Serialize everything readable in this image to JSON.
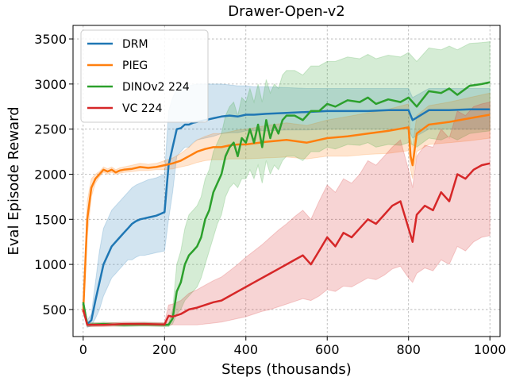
{
  "chart_data": {
    "type": "line",
    "title": "Drawer-Open-v2",
    "xlabel": "Steps (thousands)",
    "ylabel": "Eval Episode Reward",
    "xlim": [
      -25,
      1025
    ],
    "ylim": [
      200,
      3650
    ],
    "xticks": [
      0,
      200,
      400,
      600,
      800,
      1000
    ],
    "yticks": [
      500,
      1000,
      1500,
      2000,
      2500,
      3000,
      3500
    ],
    "grid": true,
    "legend_position": "top-left",
    "series": [
      {
        "name": "DRM",
        "color": "#1f77b4",
        "x": [
          0,
          10,
          20,
          30,
          40,
          50,
          60,
          70,
          80,
          90,
          100,
          110,
          120,
          130,
          140,
          150,
          160,
          170,
          180,
          190,
          200,
          210,
          220,
          230,
          240,
          250,
          260,
          270,
          280,
          300,
          320,
          340,
          360,
          380,
          400,
          420,
          450,
          500,
          550,
          600,
          650,
          700,
          750,
          800,
          810,
          850,
          900,
          950,
          1000
        ],
        "values": [
          560,
          340,
          380,
          600,
          800,
          1000,
          1100,
          1200,
          1250,
          1300,
          1350,
          1400,
          1450,
          1480,
          1500,
          1510,
          1520,
          1530,
          1540,
          1560,
          1580,
          2100,
          2300,
          2500,
          2510,
          2550,
          2550,
          2570,
          2580,
          2600,
          2620,
          2640,
          2650,
          2640,
          2660,
          2660,
          2670,
          2680,
          2690,
          2700,
          2700,
          2700,
          2710,
          2710,
          2600,
          2710,
          2710,
          2720,
          2720
        ],
        "lower": [
          500,
          300,
          320,
          400,
          500,
          650,
          750,
          850,
          900,
          950,
          1000,
          1050,
          1050,
          1080,
          1100,
          1100,
          1110,
          1120,
          1130,
          1140,
          1150,
          1500,
          1800,
          2200,
          2250,
          2300,
          2300,
          2350,
          2380,
          2400,
          2420,
          2450,
          2460,
          2460,
          2480,
          2480,
          2480,
          2490,
          2490,
          2500,
          2500,
          2500,
          2500,
          2500,
          2400,
          2500,
          2500,
          2500,
          2500
        ],
        "upper": [
          620,
          380,
          450,
          800,
          1150,
          1400,
          1500,
          1600,
          1650,
          1700,
          1750,
          1800,
          1850,
          1880,
          1900,
          1920,
          1940,
          1950,
          1960,
          1980,
          2000,
          2700,
          2850,
          2950,
          2950,
          2980,
          2980,
          2990,
          3000,
          3000,
          3000,
          3000,
          2990,
          2980,
          2980,
          2970,
          2970,
          2960,
          2950,
          2950,
          2950,
          2950,
          2950,
          2950,
          2850,
          2950,
          2950,
          2950,
          2950
        ]
      },
      {
        "name": "PIEG",
        "color": "#ff7f0e",
        "x": [
          0,
          10,
          20,
          30,
          40,
          50,
          60,
          70,
          80,
          90,
          100,
          120,
          140,
          160,
          180,
          200,
          220,
          240,
          260,
          280,
          300,
          320,
          340,
          360,
          380,
          400,
          450,
          500,
          550,
          600,
          650,
          700,
          750,
          800,
          805,
          810,
          820,
          850,
          900,
          950,
          1000
        ],
        "values": [
          470,
          1500,
          1850,
          1950,
          2000,
          2050,
          2030,
          2050,
          2020,
          2040,
          2050,
          2060,
          2080,
          2070,
          2080,
          2100,
          2120,
          2150,
          2200,
          2250,
          2280,
          2300,
          2300,
          2320,
          2330,
          2330,
          2360,
          2380,
          2350,
          2400,
          2420,
          2450,
          2480,
          2520,
          2200,
          2100,
          2450,
          2550,
          2580,
          2620,
          2660
        ],
        "lower": [
          440,
          1300,
          1750,
          1900,
          1970,
          2020,
          2000,
          2020,
          2000,
          2010,
          2020,
          2030,
          2040,
          2040,
          2050,
          2050,
          2060,
          2080,
          2100,
          2130,
          2150,
          2160,
          2160,
          2170,
          2170,
          2170,
          2180,
          2190,
          2170,
          2200,
          2200,
          2220,
          2230,
          2260,
          2050,
          1950,
          2250,
          2330,
          2350,
          2370,
          2400
        ],
        "upper": [
          500,
          1700,
          1950,
          2000,
          2030,
          2080,
          2060,
          2080,
          2050,
          2070,
          2080,
          2100,
          2120,
          2110,
          2120,
          2150,
          2180,
          2230,
          2300,
          2380,
          2420,
          2450,
          2450,
          2470,
          2490,
          2500,
          2540,
          2570,
          2540,
          2600,
          2640,
          2680,
          2720,
          2780,
          2400,
          2300,
          2650,
          2760,
          2800,
          2850,
          2900
        ]
      },
      {
        "name": "DINOv2 224",
        "color": "#2ca02c",
        "x": [
          0,
          10,
          50,
          100,
          150,
          200,
          210,
          220,
          230,
          240,
          250,
          260,
          270,
          280,
          290,
          300,
          310,
          320,
          330,
          340,
          350,
          360,
          370,
          380,
          390,
          400,
          410,
          420,
          430,
          440,
          450,
          460,
          470,
          480,
          490,
          500,
          520,
          540,
          560,
          580,
          600,
          620,
          650,
          680,
          700,
          720,
          750,
          780,
          800,
          820,
          850,
          880,
          900,
          920,
          950,
          980,
          1000
        ],
        "values": [
          580,
          330,
          340,
          330,
          335,
          330,
          330,
          400,
          700,
          800,
          1000,
          1100,
          1150,
          1200,
          1300,
          1500,
          1600,
          1800,
          1900,
          2000,
          2200,
          2300,
          2350,
          2200,
          2400,
          2350,
          2500,
          2350,
          2550,
          2300,
          2600,
          2400,
          2550,
          2450,
          2600,
          2650,
          2650,
          2600,
          2700,
          2700,
          2780,
          2750,
          2820,
          2800,
          2850,
          2780,
          2830,
          2800,
          2850,
          2750,
          2920,
          2900,
          2950,
          2880,
          2980,
          3000,
          3020
        ],
        "lower": [
          550,
          310,
          320,
          310,
          315,
          310,
          310,
          340,
          450,
          500,
          600,
          650,
          700,
          750,
          850,
          1000,
          1150,
          1300,
          1450,
          1550,
          1750,
          1850,
          1900,
          1850,
          1950,
          1950,
          2050,
          1950,
          2100,
          1900,
          2150,
          2000,
          2100,
          2050,
          2150,
          2200,
          2200,
          2150,
          2250,
          2250,
          2300,
          2280,
          2330,
          2320,
          2350,
          2300,
          2330,
          2320,
          2350,
          2300,
          2400,
          2380,
          2420,
          2380,
          2450,
          2470,
          2480
        ],
        "upper": [
          610,
          350,
          360,
          350,
          355,
          350,
          350,
          500,
          1000,
          1150,
          1400,
          1550,
          1600,
          1650,
          1750,
          1950,
          2050,
          2250,
          2350,
          2450,
          2650,
          2750,
          2800,
          2650,
          2850,
          2800,
          2950,
          2800,
          3000,
          2800,
          3050,
          2900,
          3000,
          2950,
          3100,
          3150,
          3150,
          3100,
          3200,
          3200,
          3250,
          3250,
          3300,
          3280,
          3330,
          3280,
          3320,
          3300,
          3350,
          3250,
          3400,
          3380,
          3420,
          3380,
          3450,
          3460,
          3470
        ]
      },
      {
        "name": "VC 224",
        "color": "#d62728",
        "x": [
          0,
          10,
          50,
          100,
          150,
          200,
          210,
          220,
          240,
          260,
          280,
          300,
          320,
          340,
          360,
          380,
          400,
          420,
          440,
          460,
          480,
          500,
          520,
          540,
          560,
          580,
          600,
          620,
          640,
          660,
          680,
          700,
          720,
          740,
          760,
          780,
          800,
          810,
          820,
          840,
          860,
          880,
          900,
          920,
          940,
          960,
          980,
          1000
        ],
        "values": [
          500,
          330,
          330,
          340,
          340,
          335,
          430,
          420,
          450,
          500,
          520,
          550,
          580,
          600,
          650,
          700,
          750,
          800,
          850,
          900,
          950,
          1000,
          1050,
          1100,
          1000,
          1150,
          1300,
          1200,
          1350,
          1300,
          1400,
          1500,
          1450,
          1550,
          1650,
          1700,
          1400,
          1250,
          1550,
          1650,
          1600,
          1800,
          1700,
          2000,
          1950,
          2050,
          2100,
          2120
        ],
        "lower": [
          470,
          310,
          310,
          320,
          320,
          315,
          330,
          330,
          330,
          330,
          330,
          340,
          350,
          360,
          380,
          400,
          420,
          450,
          480,
          500,
          530,
          560,
          590,
          620,
          600,
          650,
          720,
          700,
          760,
          750,
          800,
          850,
          830,
          880,
          950,
          980,
          850,
          800,
          900,
          960,
          930,
          1050,
          1000,
          1200,
          1150,
          1250,
          1300,
          1320
        ],
        "upper": [
          530,
          350,
          350,
          360,
          360,
          355,
          550,
          560,
          600,
          680,
          720,
          770,
          820,
          860,
          930,
          1000,
          1080,
          1150,
          1220,
          1300,
          1380,
          1450,
          1530,
          1600,
          1500,
          1700,
          1880,
          1800,
          1950,
          1900,
          2000,
          2150,
          2100,
          2200,
          2300,
          2380,
          2050,
          1850,
          2200,
          2320,
          2300,
          2500,
          2400,
          2700,
          2650,
          2750,
          2780,
          2800
        ]
      }
    ]
  }
}
